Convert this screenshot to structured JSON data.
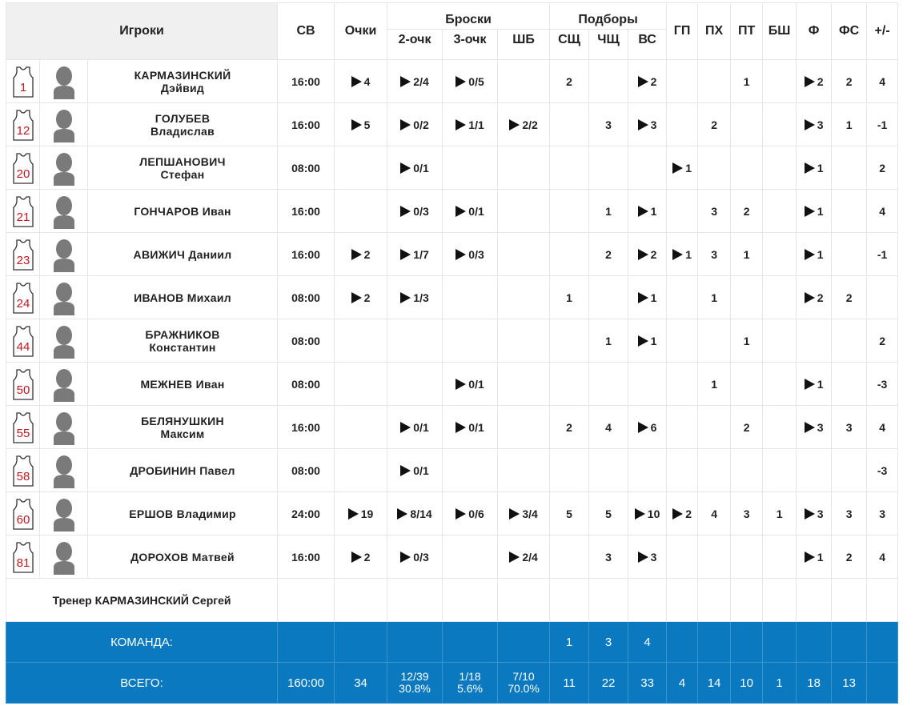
{
  "header": {
    "players": "Игроки",
    "time": "СВ",
    "points": "Очки",
    "shots": {
      "title": "Броски",
      "columns": [
        "2-очк",
        "3-очк",
        "ШБ"
      ]
    },
    "rebounds": {
      "title": "Подборы",
      "columns": [
        "СЩ",
        "ЧЩ",
        "ВС"
      ]
    },
    "other": [
      "ГП",
      "ПХ",
      "ПТ",
      "БШ",
      "Ф",
      "ФС",
      "+/-"
    ]
  },
  "players": [
    {
      "number": 1,
      "surname": "КАРМАЗИНСКИЙ",
      "name": "Дэйвид",
      "stats": [
        "16:00",
        4,
        "2/4",
        "0/5",
        null,
        2,
        null,
        2,
        null,
        null,
        1,
        null,
        2,
        2,
        4
      ]
    },
    {
      "number": 12,
      "surname": "ГОЛУБЕВ",
      "name": "Владислав",
      "stats": [
        "16:00",
        5,
        "0/2",
        "1/1",
        "2/2",
        null,
        3,
        3,
        null,
        2,
        null,
        null,
        3,
        1,
        -1
      ]
    },
    {
      "number": 20,
      "surname": "ЛЕПШАНОВИЧ",
      "name": "Стефан",
      "stats": [
        "08:00",
        null,
        "0/1",
        null,
        null,
        null,
        null,
        null,
        1,
        null,
        null,
        null,
        1,
        null,
        2
      ]
    },
    {
      "number": 21,
      "surname": "ГОНЧАРОВ",
      "name": "Иван",
      "stats": [
        "16:00",
        null,
        "0/3",
        "0/1",
        null,
        null,
        1,
        1,
        null,
        3,
        2,
        null,
        1,
        null,
        4
      ]
    },
    {
      "number": 23,
      "surname": "АВИЖИЧ",
      "name": "Даниил",
      "stats": [
        "16:00",
        2,
        "1/7",
        "0/3",
        null,
        null,
        2,
        2,
        1,
        3,
        1,
        null,
        1,
        null,
        -1
      ]
    },
    {
      "number": 24,
      "surname": "ИВАНОВ",
      "name": "Михаил",
      "stats": [
        "08:00",
        2,
        "1/3",
        null,
        null,
        1,
        null,
        1,
        null,
        1,
        null,
        null,
        2,
        2,
        null
      ]
    },
    {
      "number": 44,
      "surname": "БРАЖНИКОВ",
      "name": "Константин",
      "stats": [
        "08:00",
        null,
        null,
        null,
        null,
        null,
        1,
        1,
        null,
        null,
        1,
        null,
        null,
        null,
        2
      ]
    },
    {
      "number": 50,
      "surname": "МЕЖНЕВ",
      "name": "Иван",
      "stats": [
        "08:00",
        null,
        null,
        "0/1",
        null,
        null,
        null,
        null,
        null,
        1,
        null,
        null,
        1,
        null,
        -3
      ]
    },
    {
      "number": 55,
      "surname": "БЕЛЯНУШКИН",
      "name": "Максим",
      "stats": [
        "16:00",
        null,
        "0/1",
        "0/1",
        null,
        2,
        4,
        6,
        null,
        null,
        2,
        null,
        3,
        3,
        4
      ]
    },
    {
      "number": 58,
      "surname": "ДРОБИНИН",
      "name": "Павел",
      "stats": [
        "08:00",
        null,
        "0/1",
        null,
        null,
        null,
        null,
        null,
        null,
        null,
        null,
        null,
        null,
        null,
        -3
      ]
    },
    {
      "number": 60,
      "surname": "ЕРШОВ",
      "name": "Владимир",
      "stats": [
        "24:00",
        19,
        "8/14",
        "0/6",
        "3/4",
        5,
        5,
        10,
        2,
        4,
        3,
        1,
        3,
        3,
        3
      ]
    },
    {
      "number": 81,
      "surname": "ДОРОХОВ",
      "name": "Матвей",
      "stats": [
        "16:00",
        2,
        "0/3",
        null,
        "2/4",
        null,
        3,
        3,
        null,
        null,
        null,
        null,
        1,
        2,
        4
      ]
    }
  ],
  "coach": "Тренер КАРМАЗИНСКИЙ Сергей",
  "team": {
    "label": "КОМАНДА:",
    "stats": [
      null,
      null,
      null,
      null,
      null,
      1,
      3,
      4,
      null,
      null,
      null,
      null,
      null,
      null,
      null
    ]
  },
  "total": {
    "label": "ВСЕГО:",
    "stats": [
      "160:00",
      34,
      {
        "made": "12/39",
        "pct": "30.8%"
      },
      {
        "made": "1/18",
        "pct": "5.6%"
      },
      {
        "made": "7/10",
        "pct": "70.0%"
      },
      11,
      22,
      33,
      4,
      14,
      10,
      1,
      18,
      13,
      null
    ]
  }
}
